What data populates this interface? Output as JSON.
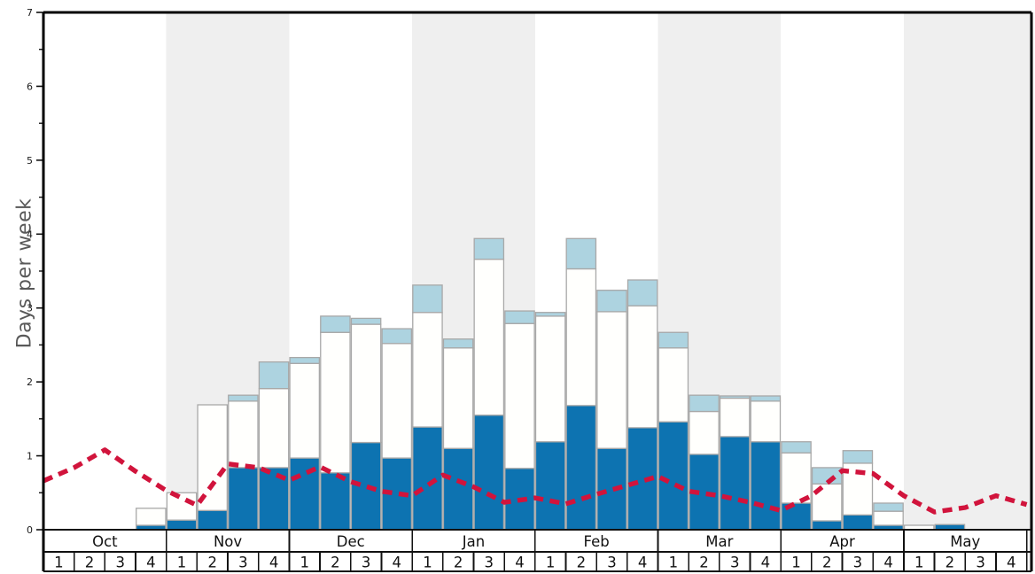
{
  "chart_data": {
    "type": "bar",
    "title": "",
    "ylabel": "Days per week",
    "ylim": [
      0,
      7
    ],
    "y_tick_labels": [
      "0",
      "1",
      "2",
      "3",
      "4",
      "5",
      "6",
      "7"
    ],
    "y_minor_step": 0.5,
    "grid": "off",
    "legend": "none",
    "months": [
      "Oct",
      "Nov",
      "Dec",
      "Jan",
      "Feb",
      "Mar",
      "Apr",
      "May"
    ],
    "weeks_per_month": [
      "1",
      "2",
      "3",
      "4"
    ],
    "shaded_months": [
      "Nov",
      "Jan",
      "Mar",
      "May"
    ],
    "band_color": "#efefef",
    "bar_border_color": "#a8a8a8",
    "series": [
      {
        "name": "dark-blue-bottom-segment",
        "color": "#0d73b1",
        "values": [
          0,
          0,
          0,
          0.06,
          0.13,
          0.26,
          0.84,
          0.84,
          0.97,
          0.77,
          1.18,
          0.97,
          1.39,
          1.1,
          1.55,
          0.83,
          1.19,
          1.68,
          1.1,
          1.38,
          1.46,
          1.02,
          1.26,
          1.19,
          0.36,
          0.12,
          0.2,
          0.06,
          0,
          0.07,
          0,
          0
        ]
      },
      {
        "name": "white-middle-segment",
        "color": "#fffffd",
        "values": [
          0,
          0,
          0,
          0.23,
          0.37,
          1.43,
          0.9,
          1.07,
          1.28,
          1.9,
          1.6,
          1.55,
          1.55,
          1.36,
          2.11,
          1.96,
          1.7,
          1.85,
          1.85,
          1.65,
          1.0,
          0.58,
          0.52,
          0.55,
          0.68,
          0.5,
          0.7,
          0.19,
          0.06,
          0,
          0,
          0
        ]
      },
      {
        "name": "light-blue-top-segment",
        "color": "#add3e0",
        "values": [
          0,
          0,
          0,
          0,
          0,
          0,
          0.08,
          0.36,
          0.08,
          0.22,
          0.08,
          0.2,
          0.37,
          0.12,
          0.28,
          0.17,
          0.05,
          0.41,
          0.29,
          0.35,
          0.21,
          0.22,
          0.03,
          0.07,
          0.15,
          0.22,
          0.17,
          0.11,
          0,
          0,
          0,
          0
        ]
      }
    ],
    "line_series": {
      "name": "red-dashed-trend-line",
      "color": "#d1143c",
      "style": "dashed",
      "x_positions": "week-boundaries",
      "values": [
        0.66,
        0.84,
        1.08,
        0.79,
        0.53,
        0.33,
        0.89,
        0.84,
        0.67,
        0.85,
        0.65,
        0.52,
        0.46,
        0.74,
        0.58,
        0.37,
        0.43,
        0.35,
        0.48,
        0.6,
        0.72,
        0.52,
        0.46,
        0.37,
        0.26,
        0.46,
        0.8,
        0.76,
        0.46,
        0.24,
        0.3,
        0.46,
        0.34
      ]
    }
  }
}
